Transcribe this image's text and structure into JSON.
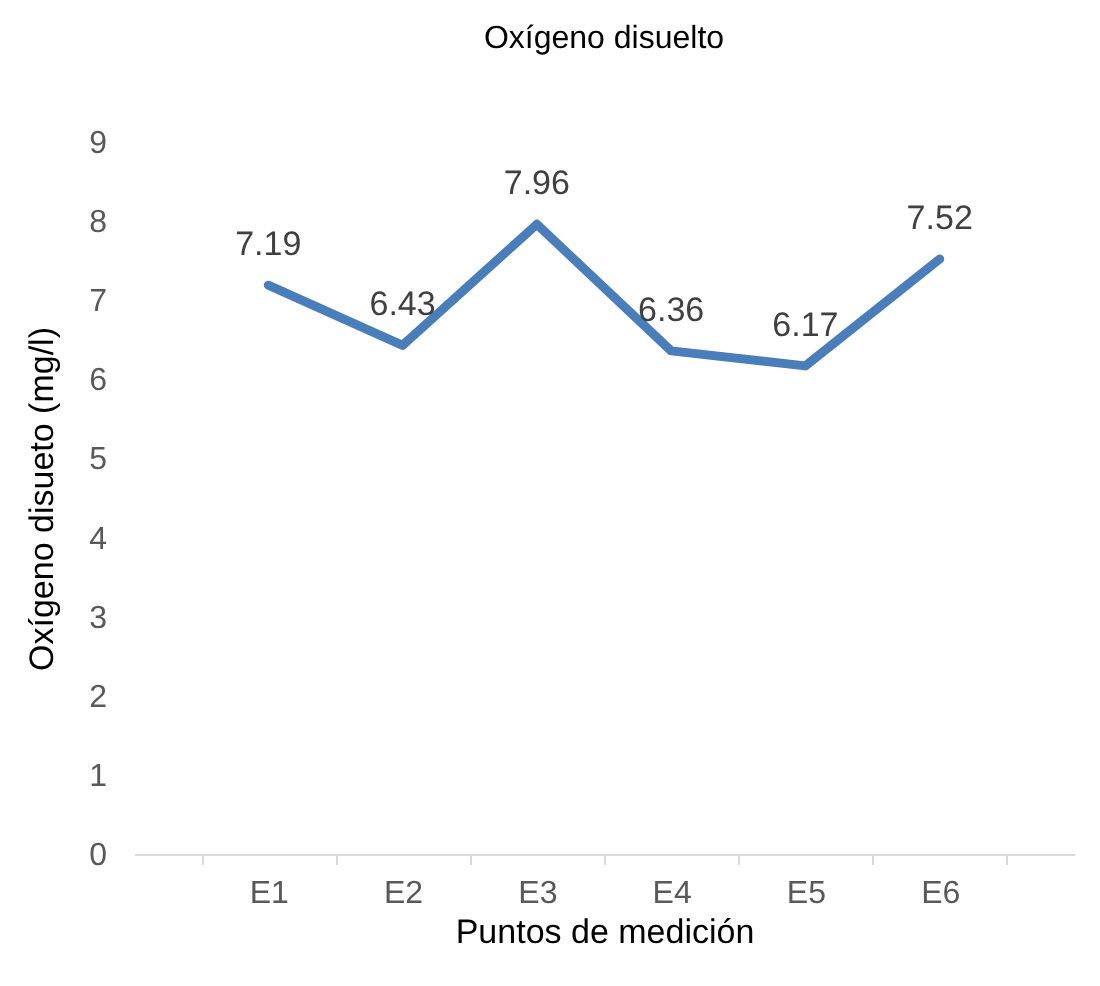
{
  "chart_data": {
    "type": "line",
    "title": "Oxígeno disuelto",
    "xlabel": "Puntos de medición",
    "ylabel": "Oxígeno disueto (mg/l)",
    "categories": [
      "E1",
      "E2",
      "E3",
      "E4",
      "E5",
      "E6"
    ],
    "series": [
      {
        "color": "#4a7ebb",
        "values": [
          7.19,
          6.43,
          7.96,
          6.36,
          6.17,
          7.52
        ]
      }
    ],
    "ylim": [
      0,
      9
    ],
    "yticks": [
      0,
      1,
      2,
      3,
      4,
      5,
      6,
      7,
      8,
      9
    ],
    "grid": false,
    "legend": false,
    "marker": "none",
    "line_style": "solid",
    "data_labels": true
  }
}
